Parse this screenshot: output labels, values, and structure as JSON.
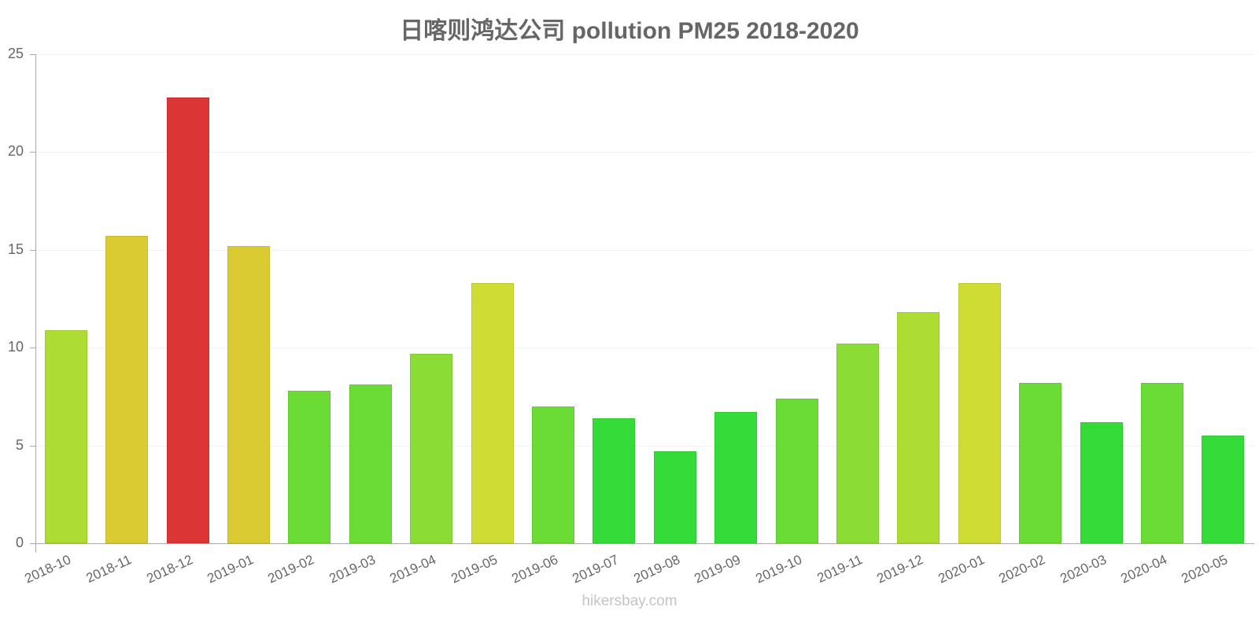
{
  "chart_data": {
    "type": "bar",
    "title": "日喀则鸿达公司 pollution PM25 2018-2020",
    "xlabel": "",
    "ylabel": "",
    "ylim": [
      0,
      25
    ],
    "yticks": [
      0,
      5,
      10,
      15,
      20,
      25
    ],
    "grid": true,
    "legend": null,
    "categories": [
      "2018-10",
      "2018-11",
      "2018-12",
      "2019-01",
      "2019-02",
      "2019-03",
      "2019-04",
      "2019-05",
      "2019-06",
      "2019-07",
      "2019-08",
      "2019-09",
      "2019-10",
      "2019-11",
      "2019-12",
      "2020-01",
      "2020-02",
      "2020-03",
      "2020-04",
      "2020-05"
    ],
    "values": [
      10.9,
      15.7,
      22.8,
      15.2,
      7.8,
      8.1,
      9.7,
      13.3,
      7.0,
      6.4,
      4.7,
      6.7,
      7.4,
      10.2,
      11.8,
      13.3,
      8.2,
      6.2,
      8.2,
      5.5
    ],
    "colors": [
      "#addd33",
      "#dbcb33",
      "#db3535",
      "#dbcb33",
      "#6bdb35",
      "#6bdb35",
      "#8bdd35",
      "#cfdc33",
      "#6bdb35",
      "#35db39",
      "#35db39",
      "#35db39",
      "#6bdb35",
      "#8bdd35",
      "#addd33",
      "#cfdc33",
      "#6bdb35",
      "#35db39",
      "#6bdb35",
      "#35db39"
    ]
  },
  "credit": "hikersbay.com"
}
